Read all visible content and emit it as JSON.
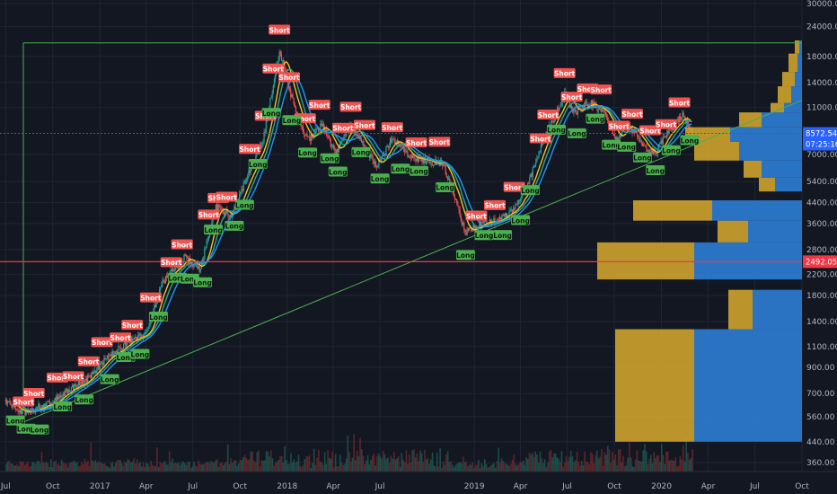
{
  "chart_data": {
    "type": "candlestick",
    "title": "",
    "price_axis": {
      "scale": "log",
      "ticks": [
        "30000.00",
        "24000.00",
        "18000.00",
        "14000.00",
        "11000.00",
        "7000.00",
        "5400.00",
        "4400.00",
        "3600.00",
        "2800.00",
        "2200.00",
        "1800.00",
        "1400.00",
        "1100.00",
        "900.00",
        "700.00",
        "560.00",
        "440.00",
        "360.00"
      ],
      "tick_values": [
        30000,
        24000,
        18000,
        14000,
        11000,
        7000,
        5400,
        4400,
        3600,
        2800,
        2200,
        1800,
        1400,
        1100,
        900,
        700,
        560,
        440,
        360
      ],
      "range": [
        330,
        31000
      ]
    },
    "time_axis": {
      "labels": [
        "Jul",
        "Oct",
        "2017",
        "Apr",
        "Jul",
        "Oct",
        "2018",
        "Apr",
        "Jul",
        "2019",
        "Apr",
        "Jul",
        "Oct",
        "2020",
        "Apr",
        "Jul",
        "Oct"
      ],
      "label_dates": [
        "2016-07-01",
        "2016-10-01",
        "2017-01-01",
        "2017-04-01",
        "2017-07-01",
        "2017-10-01",
        "2018-01-01",
        "2018-04-01",
        "2018-07-01",
        "2019-01-01",
        "2019-04-01",
        "2019-07-01",
        "2019-10-01",
        "2020-01-01",
        "2020-04-01",
        "2020-07-01",
        "2020-10-01"
      ],
      "range": [
        "2016-06-20",
        "2020-10-01"
      ]
    },
    "price_path": [
      [
        "2016-07-01",
        650
      ],
      [
        "2016-08-01",
        580
      ],
      [
        "2016-09-01",
        610
      ],
      [
        "2016-10-01",
        640
      ],
      [
        "2016-11-01",
        730
      ],
      [
        "2016-12-01",
        780
      ],
      [
        "2017-01-01",
        920
      ],
      [
        "2017-02-01",
        1050
      ],
      [
        "2017-03-01",
        1150
      ],
      [
        "2017-04-01",
        1250
      ],
      [
        "2017-05-01",
        2000
      ],
      [
        "2017-06-15",
        2600
      ],
      [
        "2017-07-15",
        2300
      ],
      [
        "2017-08-15",
        4200
      ],
      [
        "2017-09-15",
        3900
      ],
      [
        "2017-10-15",
        5700
      ],
      [
        "2017-11-15",
        8000
      ],
      [
        "2017-12-17",
        19000
      ],
      [
        "2018-01-15",
        11000
      ],
      [
        "2018-02-10",
        8000
      ],
      [
        "2018-03-10",
        9500
      ],
      [
        "2018-04-05",
        7000
      ],
      [
        "2018-05-05",
        9500
      ],
      [
        "2018-06-25",
        6200
      ],
      [
        "2018-07-25",
        8200
      ],
      [
        "2018-09-01",
        6800
      ],
      [
        "2018-11-01",
        6400
      ],
      [
        "2018-12-15",
        3300
      ],
      [
        "2019-01-15",
        3600
      ],
      [
        "2019-02-15",
        3700
      ],
      [
        "2019-03-15",
        4000
      ],
      [
        "2019-04-15",
        5200
      ],
      [
        "2019-05-15",
        7900
      ],
      [
        "2019-06-26",
        12500
      ],
      [
        "2019-07-15",
        10500
      ],
      [
        "2019-08-15",
        11500
      ],
      [
        "2019-09-15",
        10300
      ],
      [
        "2019-10-05",
        8000
      ],
      [
        "2019-10-27",
        9500
      ],
      [
        "2019-12-01",
        7300
      ],
      [
        "2019-12-20",
        7100
      ],
      [
        "2020-01-15",
        8800
      ],
      [
        "2020-02-12",
        10300
      ],
      [
        "2020-03-01",
        8572
      ]
    ],
    "current_price": {
      "value": 8572.54,
      "label": "8572.54",
      "countdown": "07:25:16",
      "color": "#2962ff"
    },
    "horizontal_line": {
      "value": 2492.05,
      "label": "2492.05",
      "color": "#f23645"
    },
    "top_line": {
      "value": 20500,
      "color": "#4caf50"
    },
    "trend_line": {
      "from": [
        "2016-07-25",
        520
      ],
      "to": [
        "2020-10-01",
        11800
      ],
      "color": "#4caf50"
    },
    "signals": {
      "short_label": "Short",
      "long_label": "Long",
      "short_color": "#ef5350",
      "long_color": "#4caf50",
      "short_dates": [
        "2016-08-05",
        "2016-08-25",
        "2016-10-10",
        "2016-11-10",
        "2016-12-10",
        "2017-01-05",
        "2017-02-10",
        "2017-03-05",
        "2017-04-10",
        "2017-05-20",
        "2017-06-10",
        "2017-08-01",
        "2017-08-20",
        "2017-09-05",
        "2017-10-20",
        "2017-11-20",
        "2017-12-05",
        "2017-12-17",
        "2018-01-05",
        "2018-02-05",
        "2018-03-05",
        "2018-04-20",
        "2018-05-05",
        "2018-06-01",
        "2018-07-25",
        "2018-09-10",
        "2018-10-25",
        "2019-01-05",
        "2019-02-10",
        "2019-03-20",
        "2019-05-10",
        "2019-05-25",
        "2019-06-26",
        "2019-07-10",
        "2019-08-10",
        "2019-09-05",
        "2019-10-10",
        "2019-11-05",
        "2019-12-10",
        "2020-01-10",
        "2020-02-05"
      ],
      "long_dates": [
        "2016-07-20",
        "2016-08-10",
        "2016-09-05",
        "2016-10-20",
        "2016-12-01",
        "2017-01-20",
        "2017-02-20",
        "2017-03-20",
        "2017-04-25",
        "2017-06-01",
        "2017-06-25",
        "2017-07-20",
        "2017-08-10",
        "2017-09-20",
        "2017-10-10",
        "2017-11-05",
        "2017-12-01",
        "2018-01-10",
        "2018-02-10",
        "2018-03-25",
        "2018-04-10",
        "2018-05-25",
        "2018-07-01",
        "2018-08-10",
        "2018-09-15",
        "2018-11-05",
        "2018-12-15",
        "2019-01-20",
        "2019-02-25",
        "2019-04-01",
        "2019-04-20",
        "2019-06-10",
        "2019-07-20",
        "2019-08-25",
        "2019-09-25",
        "2019-10-25",
        "2019-11-25",
        "2019-12-20",
        "2020-01-20",
        "2020-02-25"
      ]
    },
    "volume_profile": {
      "colors": {
        "up": "#2c7bd0",
        "down": "#caa12e"
      },
      "bins": [
        {
          "low": 440,
          "high": 1300,
          "up": 120,
          "down": 88
        },
        {
          "low": 1300,
          "high": 1900,
          "up": 55,
          "down": 27
        },
        {
          "low": 2100,
          "high": 3000,
          "up": 120,
          "down": 108
        },
        {
          "low": 3000,
          "high": 3700,
          "up": 60,
          "down": 34
        },
        {
          "low": 3700,
          "high": 4500,
          "up": 100,
          "down": 88
        },
        {
          "low": 4900,
          "high": 5600,
          "up": 30,
          "down": 18
        },
        {
          "low": 5600,
          "high": 6600,
          "up": 45,
          "down": 20
        },
        {
          "low": 6600,
          "high": 7900,
          "up": 70,
          "down": 50
        },
        {
          "low": 7900,
          "high": 9100,
          "up": 80,
          "down": 50
        },
        {
          "low": 9100,
          "high": 10500,
          "up": 45,
          "down": 25
        },
        {
          "low": 10500,
          "high": 11500,
          "up": 20,
          "down": 15
        },
        {
          "low": 11500,
          "high": 13500,
          "up": 12,
          "down": 15
        },
        {
          "low": 13500,
          "high": 15500,
          "up": 8,
          "down": 14
        },
        {
          "low": 15500,
          "high": 18500,
          "up": 5,
          "down": 10
        },
        {
          "low": 18500,
          "high": 21000,
          "up": 3,
          "down": 5
        }
      ]
    },
    "moving_average_colors": [
      "#f7c325",
      "#26a69a",
      "#2196f3"
    ],
    "grid": true
  }
}
